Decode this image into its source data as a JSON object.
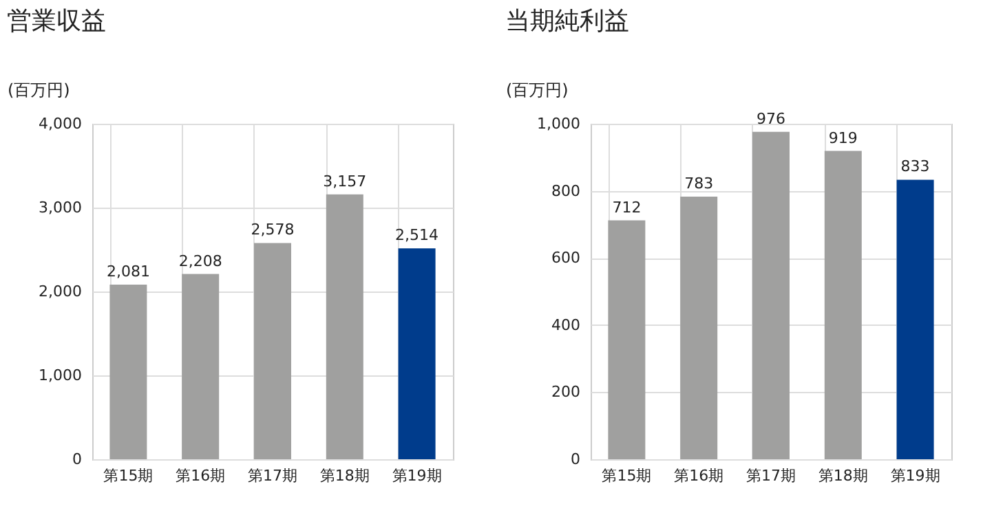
{
  "chart_data": [
    {
      "type": "bar",
      "title": "営業収益",
      "ylabel": "(百万円)",
      "categories": [
        "第15期",
        "第16期",
        "第17期",
        "第18期",
        "第19期"
      ],
      "values": [
        2081,
        2208,
        2578,
        3157,
        2514
      ],
      "colors": [
        "#a0a09f",
        "#a0a09f",
        "#a0a09f",
        "#a0a09f",
        "#003c8c"
      ],
      "ylim": [
        0,
        4000
      ],
      "yticks": [
        0,
        {
          "value": 1000,
          "label": "1,000"
        },
        {
          "value": 2000,
          "label": "2,000"
        },
        {
          "value": 3000,
          "label": "3,000"
        },
        {
          "value": 4000,
          "label": "4,000"
        }
      ],
      "value_labels": [
        "2,081",
        "2,208",
        "2,578",
        "3,157",
        "2,514"
      ],
      "grid": true
    },
    {
      "type": "bar",
      "title": "当期純利益",
      "ylabel": "(百万円)",
      "categories": [
        "第15期",
        "第16期",
        "第17期",
        "第18期",
        "第19期"
      ],
      "values": [
        712,
        783,
        976,
        919,
        833
      ],
      "colors": [
        "#a0a09f",
        "#a0a09f",
        "#a0a09f",
        "#a0a09f",
        "#003c8c"
      ],
      "ylim": [
        0,
        1000
      ],
      "yticks": [
        0,
        200,
        400,
        600,
        800,
        {
          "value": 1000,
          "label": "1,000"
        }
      ],
      "data_labels": true,
      "grid": true
    }
  ]
}
